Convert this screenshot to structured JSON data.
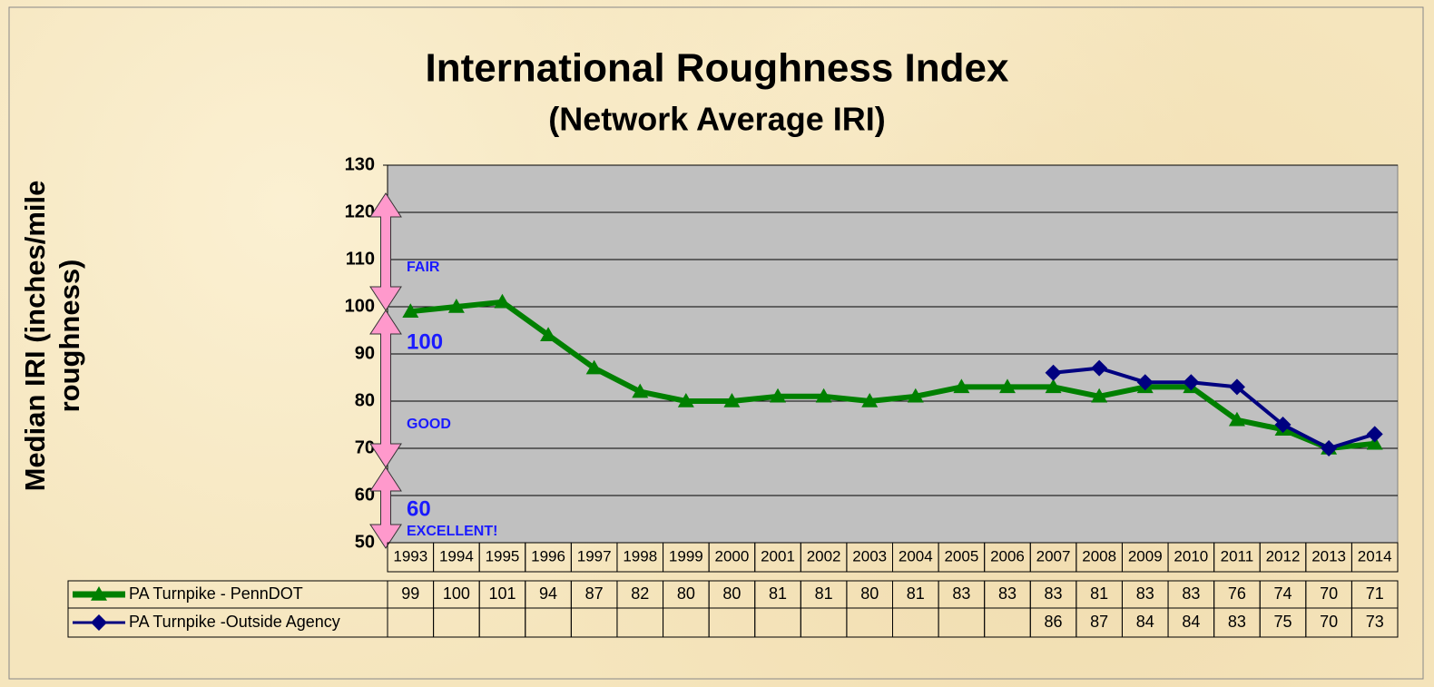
{
  "chart_data": {
    "type": "line",
    "title": "International Roughness Index",
    "subtitle": "(Network Average IRI)",
    "ylabel": "Median IRI (inches/mile roughness)",
    "categories": [
      "1993",
      "1994",
      "1995",
      "1996",
      "1997",
      "1998",
      "1999",
      "2000",
      "2001",
      "2002",
      "2003",
      "2004",
      "2005",
      "2006",
      "2007",
      "2008",
      "2009",
      "2010",
      "2011",
      "2012",
      "2013",
      "2014"
    ],
    "series": [
      {
        "name": "PA Turnpike - PennDOT",
        "color": "#008000",
        "marker": "triangle",
        "values": [
          99,
          100,
          101,
          94,
          87,
          82,
          80,
          80,
          81,
          81,
          80,
          81,
          83,
          83,
          83,
          81,
          83,
          83,
          76,
          74,
          70,
          71
        ]
      },
      {
        "name": "PA Turnpike -Outside Agency",
        "color": "#000080",
        "marker": "diamond",
        "values": [
          null,
          null,
          null,
          null,
          null,
          null,
          null,
          null,
          null,
          null,
          null,
          null,
          null,
          null,
          86,
          87,
          84,
          84,
          83,
          75,
          70,
          73
        ]
      }
    ],
    "ylim": [
      50,
      130
    ],
    "yticks": [
      50,
      60,
      70,
      80,
      90,
      100,
      110,
      120,
      130
    ],
    "grid": true,
    "annotations": [
      "FAIR",
      "100",
      "GOOD",
      "60",
      "EXCELLENT!"
    ]
  }
}
